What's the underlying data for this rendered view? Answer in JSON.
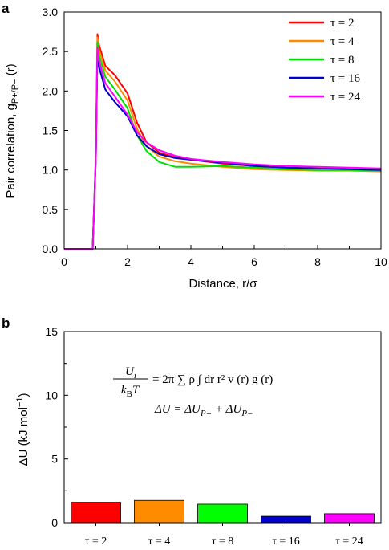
{
  "chart_data": [
    {
      "panel": "a",
      "type": "line",
      "xlabel": "Distance, r/σ",
      "ylabel": "Pair correlation, g",
      "ylabel_sub": "P+/P−",
      "ylabel_tail": " (r)",
      "xlim": [
        0,
        10
      ],
      "ylim": [
        0,
        3.0
      ],
      "xticks": [
        0,
        2,
        4,
        6,
        8,
        10
      ],
      "yticks": [
        "0.0",
        "0.5",
        "1.0",
        "1.5",
        "2.0",
        "2.5",
        "3.0"
      ],
      "legend_position": "top-right",
      "series": [
        {
          "name": "τ = 2",
          "color": "#ff0000",
          "x": [
            0,
            0.9,
            1.0,
            1.05,
            1.1,
            1.3,
            1.6,
            2.0,
            2.3,
            2.6,
            3.0,
            3.5,
            4.0,
            5.0,
            6.0,
            7.0,
            8.0,
            9.0,
            10.0
          ],
          "y": [
            0,
            0,
            1.2,
            2.72,
            2.58,
            2.32,
            2.2,
            1.97,
            1.6,
            1.35,
            1.22,
            1.16,
            1.13,
            1.08,
            1.05,
            1.03,
            1.02,
            1.01,
            1.0
          ]
        },
        {
          "name": "τ = 4",
          "color": "#ff8c00",
          "x": [
            0,
            0.9,
            1.0,
            1.05,
            1.1,
            1.3,
            1.6,
            2.0,
            2.3,
            2.6,
            3.0,
            3.5,
            4.0,
            5.0,
            6.0,
            7.0,
            8.0,
            9.0,
            10.0
          ],
          "y": [
            0,
            0,
            1.2,
            2.68,
            2.52,
            2.26,
            2.12,
            1.88,
            1.52,
            1.3,
            1.17,
            1.11,
            1.08,
            1.04,
            1.01,
            1.0,
            0.99,
            0.99,
            0.98
          ]
        },
        {
          "name": "τ = 8",
          "color": "#00e000",
          "x": [
            0,
            0.9,
            1.0,
            1.05,
            1.1,
            1.3,
            1.6,
            2.0,
            2.3,
            2.6,
            3.0,
            3.5,
            4.0,
            5.0,
            6.0,
            7.0,
            8.0,
            9.0,
            10.0
          ],
          "y": [
            0,
            0,
            1.2,
            2.62,
            2.45,
            2.18,
            2.02,
            1.78,
            1.44,
            1.24,
            1.1,
            1.04,
            1.04,
            1.05,
            1.03,
            1.01,
            1.0,
            1.0,
            0.99
          ]
        },
        {
          "name": "τ = 16",
          "color": "#0000cc",
          "x": [
            0,
            0.9,
            1.0,
            1.05,
            1.1,
            1.3,
            1.6,
            2.0,
            2.3,
            2.6,
            3.0,
            3.5,
            4.0,
            5.0,
            6.0,
            7.0,
            8.0,
            9.0,
            10.0
          ],
          "y": [
            0,
            0,
            1.15,
            2.48,
            2.3,
            2.02,
            1.86,
            1.68,
            1.44,
            1.3,
            1.2,
            1.15,
            1.13,
            1.09,
            1.05,
            1.03,
            1.02,
            1.01,
            1.0
          ]
        },
        {
          "name": "τ = 24",
          "color": "#ff00ff",
          "x": [
            0,
            0.9,
            1.0,
            1.05,
            1.1,
            1.3,
            1.6,
            2.0,
            2.3,
            2.6,
            3.0,
            3.5,
            4.0,
            5.0,
            6.0,
            7.0,
            8.0,
            9.0,
            10.0
          ],
          "y": [
            0,
            0,
            1.15,
            2.55,
            2.38,
            2.1,
            1.93,
            1.7,
            1.48,
            1.35,
            1.25,
            1.18,
            1.14,
            1.1,
            1.07,
            1.05,
            1.04,
            1.03,
            1.02
          ]
        }
      ]
    },
    {
      "panel": "b",
      "type": "bar",
      "ylabel": "ΔU (kJ mol",
      "ylabel_sup": "−1",
      "ylabel_tail": ")",
      "ylim": [
        0,
        15
      ],
      "yticks": [
        "0",
        "5",
        "10",
        "15"
      ],
      "categories": [
        "τ = 2",
        "τ = 4",
        "τ = 8",
        "τ = 16",
        "τ = 24"
      ],
      "values": [
        1.6,
        1.75,
        1.45,
        0.5,
        0.7
      ],
      "colors": [
        "#ff0000",
        "#ff8c00",
        "#00ff00",
        "#0000cc",
        "#ff00ff"
      ],
      "annotations": {
        "eq1_num": "U",
        "eq1_num_sub": "i",
        "eq1_den": "k",
        "eq1_den_sub": "B",
        "eq1_den_tail": "T",
        "eq1_rhs": "= 2π ∑ ρ ∫ dr r² v (r) g (r)",
        "eq2": "ΔU = ΔU",
        "eq2_sub1": "P+",
        "eq2_mid": " + ΔU",
        "eq2_sub2": "P−"
      }
    }
  ]
}
